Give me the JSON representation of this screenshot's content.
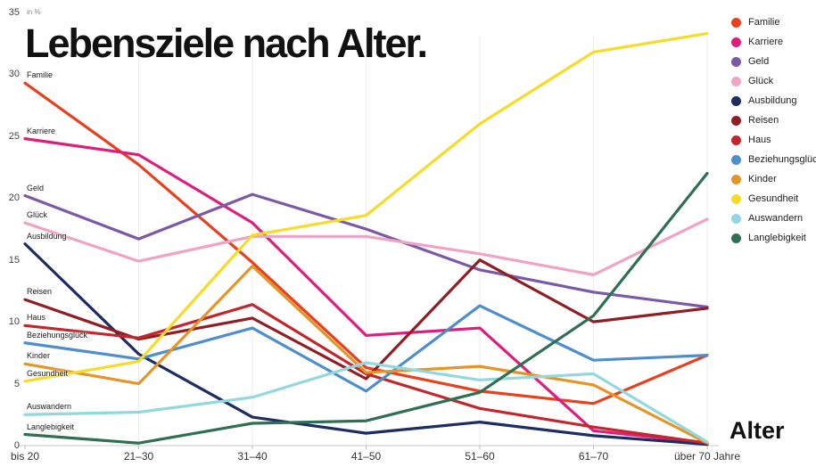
{
  "title": "Lebensziele nach Alter.",
  "x_axis_title": "Alter",
  "y_axis_unit": "in %",
  "chart_data": {
    "type": "line",
    "title": "Lebensziele nach Alter.",
    "xlabel": "Alter",
    "ylabel": "in %",
    "ylim": [
      0,
      35
    ],
    "yticks": [
      0,
      5,
      10,
      15,
      20,
      25,
      30,
      35
    ],
    "grid": "none",
    "legend_position": "top-right",
    "categories": [
      "bis 20",
      "21–30",
      "31–40",
      "41–50",
      "51–60",
      "61–70",
      "über 70 Jahre"
    ],
    "series": [
      {
        "name": "Familie",
        "color": "#e8401f",
        "values": [
          29.3,
          22.7,
          14.8,
          6.3,
          4.4,
          3.4,
          7.3
        ]
      },
      {
        "name": "Karriere",
        "color": "#dd1e7e",
        "values": [
          24.8,
          23.5,
          18.0,
          8.9,
          9.5,
          1.2,
          0.2
        ]
      },
      {
        "name": "Geld",
        "color": "#7a5aa4",
        "values": [
          20.2,
          16.7,
          20.3,
          17.5,
          14.2,
          12.4,
          11.2
        ]
      },
      {
        "name": "Glück",
        "color": "#efa3c5",
        "values": [
          18.0,
          14.9,
          16.9,
          16.9,
          15.5,
          13.8,
          18.3
        ]
      },
      {
        "name": "Ausbildung",
        "color": "#1e2d61",
        "values": [
          16.3,
          7.4,
          2.3,
          1.0,
          1.9,
          0.8,
          0.1
        ]
      },
      {
        "name": "Reisen",
        "color": "#8e1f24",
        "values": [
          11.8,
          8.6,
          10.3,
          5.4,
          15.0,
          10.0,
          11.1
        ]
      },
      {
        "name": "Haus",
        "color": "#c1272d",
        "values": [
          9.7,
          8.7,
          11.4,
          5.8,
          3.0,
          1.5,
          0.2
        ]
      },
      {
        "name": "Beziehungsglück",
        "color": "#4e8ecb",
        "values": [
          8.3,
          7.0,
          9.5,
          4.4,
          11.3,
          6.9,
          7.3
        ]
      },
      {
        "name": "Kinder",
        "color": "#e59528",
        "values": [
          6.6,
          5.0,
          14.5,
          5.9,
          6.4,
          4.9,
          0.2
        ]
      },
      {
        "name": "Gesundheit",
        "color": "#f6dc29",
        "values": [
          5.2,
          6.8,
          17.0,
          18.6,
          26.0,
          31.8,
          33.3
        ]
      },
      {
        "name": "Auswandern",
        "color": "#92d8de",
        "values": [
          2.5,
          2.7,
          3.9,
          6.7,
          5.3,
          5.8,
          0.3
        ]
      },
      {
        "name": "Langlebigkeit",
        "color": "#2f6f52",
        "values": [
          0.9,
          0.2,
          1.8,
          2.0,
          4.3,
          10.5,
          22.0
        ]
      }
    ]
  }
}
